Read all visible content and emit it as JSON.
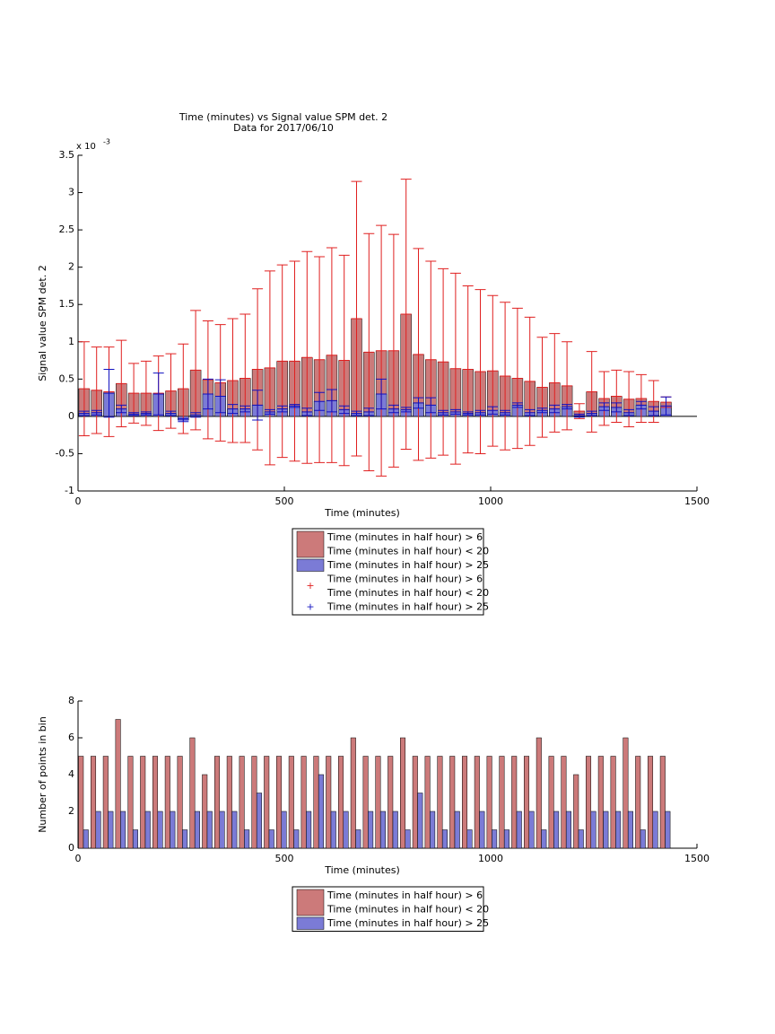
{
  "chart_data": [
    {
      "type": "bar",
      "barmode": "overlay",
      "title": "Time (minutes) vs Signal value SPM det. 2",
      "subtitle": "Data for 2017/06/10",
      "xlabel": "Time (minutes)",
      "ylabel": "Signal value SPM det. 2",
      "y_multiplier": "x 10",
      "y_multiplier_exponent": "-3",
      "x": [
        15,
        45,
        75,
        105,
        135,
        165,
        195,
        225,
        255,
        285,
        315,
        345,
        375,
        405,
        435,
        465,
        495,
        525,
        555,
        585,
        615,
        645,
        675,
        705,
        735,
        765,
        795,
        825,
        855,
        885,
        915,
        945,
        975,
        1005,
        1035,
        1065,
        1095,
        1125,
        1155,
        1185,
        1215,
        1245,
        1275,
        1305,
        1335,
        1365,
        1395,
        1425
      ],
      "series": [
        {
          "name": [
            "Time (minutes in half hour) > 6",
            "Time (minutes in half hour) < 20"
          ],
          "color": "#cc7a7a",
          "error_color": "#e02020",
          "values": [
            0.37,
            0.35,
            0.33,
            0.44,
            0.31,
            0.31,
            0.31,
            0.34,
            0.37,
            0.62,
            0.49,
            0.45,
            0.48,
            0.51,
            0.63,
            0.65,
            0.74,
            0.74,
            0.79,
            0.76,
            0.82,
            0.75,
            1.31,
            0.86,
            0.88,
            0.88,
            1.37,
            0.83,
            0.76,
            0.73,
            0.64,
            0.63,
            0.6,
            0.61,
            0.54,
            0.51,
            0.47,
            0.39,
            0.45,
            0.41,
            0.07,
            0.33,
            0.24,
            0.27,
            0.23,
            0.24,
            0.2,
            0.19
          ],
          "errors": [
            0.63,
            0.58,
            0.6,
            0.58,
            0.4,
            0.43,
            0.5,
            0.5,
            0.6,
            0.8,
            0.79,
            0.78,
            0.83,
            0.86,
            1.08,
            1.3,
            1.29,
            1.34,
            1.42,
            1.38,
            1.44,
            1.41,
            1.84,
            1.59,
            1.68,
            1.56,
            1.81,
            1.42,
            1.32,
            1.25,
            1.28,
            1.12,
            1.1,
            1.01,
            0.99,
            0.94,
            0.86,
            0.67,
            0.66,
            0.59,
            0.1,
            0.54,
            0.36,
            0.35,
            0.37,
            0.32,
            0.28,
            0.07
          ]
        },
        {
          "name": [
            "Time (minutes in half hour) > 25"
          ],
          "color": "#7b7bd6",
          "error_color": "#1010c0",
          "values": [
            0.04,
            0.05,
            0.31,
            0.1,
            0.03,
            0.04,
            0.3,
            0.04,
            -0.05,
            0.02,
            0.3,
            0.27,
            0.1,
            0.1,
            0.15,
            0.06,
            0.1,
            0.14,
            0.06,
            0.2,
            0.21,
            0.09,
            0.04,
            0.06,
            0.3,
            0.1,
            0.09,
            0.18,
            0.15,
            0.05,
            0.06,
            0.04,
            0.05,
            0.08,
            0.05,
            0.15,
            0.05,
            0.08,
            0.1,
            0.13,
            0.01,
            0.04,
            0.13,
            0.12,
            0.05,
            0.15,
            0.07,
            0.14
          ],
          "errors": [
            0.03,
            0.03,
            0.32,
            0.05,
            0.02,
            0.02,
            0.28,
            0.03,
            0.02,
            0.03,
            0.2,
            0.22,
            0.06,
            0.04,
            0.2,
            0.03,
            0.04,
            0.02,
            0.05,
            0.12,
            0.15,
            0.05,
            0.03,
            0.05,
            0.2,
            0.05,
            0.03,
            0.07,
            0.1,
            0.03,
            0.03,
            0.02,
            0.03,
            0.05,
            0.03,
            0.03,
            0.04,
            0.03,
            0.05,
            0.03,
            0.02,
            0.03,
            0.05,
            0.06,
            0.04,
            0.05,
            0.06,
            0.12
          ]
        }
      ],
      "xlim": [
        0,
        1500
      ],
      "xticks": [
        0,
        500,
        1000,
        1500
      ],
      "ylim": [
        -1,
        3.5
      ],
      "yticks": [
        -1,
        -0.5,
        0,
        0.5,
        1,
        1.5,
        2,
        2.5,
        3,
        3.5
      ],
      "legend": "below"
    },
    {
      "type": "bar",
      "barmode": "group",
      "xlabel": "Time (minutes)",
      "ylabel": "Number of points in bin",
      "x": [
        15,
        45,
        75,
        105,
        135,
        165,
        195,
        225,
        255,
        285,
        315,
        345,
        375,
        405,
        435,
        465,
        495,
        525,
        555,
        585,
        615,
        645,
        675,
        705,
        735,
        765,
        795,
        825,
        855,
        885,
        915,
        945,
        975,
        1005,
        1035,
        1065,
        1095,
        1125,
        1155,
        1185,
        1215,
        1245,
        1275,
        1305,
        1335,
        1365,
        1395,
        1425
      ],
      "series": [
        {
          "name": [
            "Time (minutes in half hour) > 6",
            "Time (minutes in half hour) < 20"
          ],
          "color": "#cc7a7a",
          "values": [
            5,
            5,
            5,
            7,
            5,
            5,
            5,
            5,
            5,
            6,
            4,
            5,
            5,
            5,
            5,
            5,
            5,
            5,
            5,
            5,
            5,
            5,
            6,
            5,
            5,
            5,
            6,
            5,
            5,
            5,
            5,
            5,
            5,
            5,
            5,
            5,
            5,
            6,
            5,
            5,
            4,
            5,
            5,
            5,
            6,
            5,
            5,
            5
          ]
        },
        {
          "name": [
            "Time (minutes in half hour) > 25"
          ],
          "color": "#7b7bd6",
          "values": [
            1,
            2,
            2,
            2,
            1,
            2,
            2,
            2,
            1,
            2,
            2,
            2,
            2,
            1,
            3,
            1,
            2,
            1,
            2,
            4,
            2,
            2,
            1,
            2,
            2,
            2,
            1,
            3,
            2,
            1,
            2,
            1,
            2,
            1,
            1,
            2,
            2,
            1,
            2,
            2,
            1,
            2,
            2,
            2,
            2,
            1,
            2,
            2
          ]
        }
      ],
      "xlim": [
        0,
        1500
      ],
      "xticks": [
        0,
        500,
        1000,
        1500
      ],
      "ylim": [
        0,
        8
      ],
      "yticks": [
        0,
        2,
        4,
        6,
        8
      ],
      "legend": "below"
    }
  ]
}
